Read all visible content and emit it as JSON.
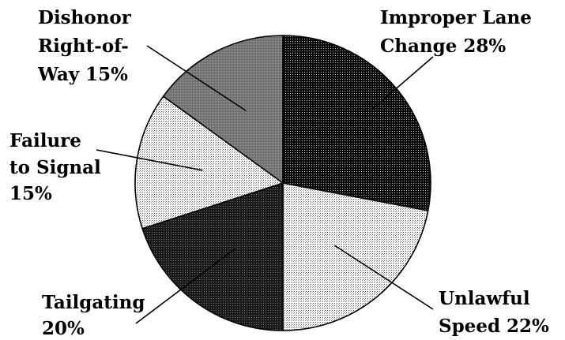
{
  "chart_data": {
    "type": "pie",
    "title": "",
    "slices": [
      {
        "key": "lane",
        "label": "Improper Lane Change",
        "value": 28,
        "pattern": "dense-dark",
        "label_lines": [
          "Improper Lane",
          "Change 28%"
        ]
      },
      {
        "key": "speed",
        "label": "Unlawful Speed",
        "value": 22,
        "pattern": "light-dots",
        "label_lines": [
          "Unlawful",
          "Speed 22%"
        ]
      },
      {
        "key": "tail",
        "label": "Tailgating",
        "value": 20,
        "pattern": "dark",
        "label_lines": [
          "Tailgating",
          "20%"
        ]
      },
      {
        "key": "signal",
        "label": "Failure to Signal",
        "value": 15,
        "pattern": "light-dots",
        "label_lines": [
          "Failure",
          "to Signal",
          "15%"
        ]
      },
      {
        "key": "dishonor",
        "label": "Dishonor Right-of-Way",
        "value": 15,
        "pattern": "medium-gray",
        "label_lines": [
          "Dishonor",
          "Right-of-",
          "Way 15%"
        ]
      }
    ],
    "legend": "none"
  }
}
